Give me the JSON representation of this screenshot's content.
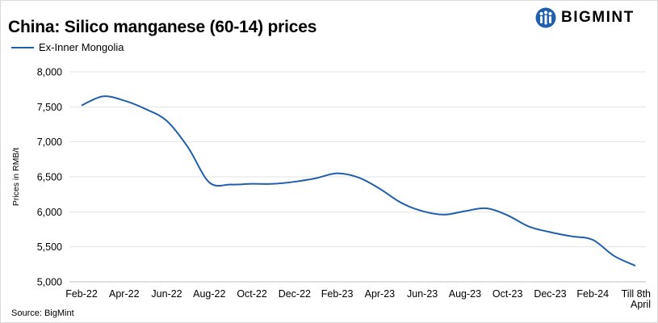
{
  "header": {
    "title": "China: Silico manganese (60-14) prices"
  },
  "brand": {
    "name": "BIGMINT",
    "icon": "bigmint-logo-icon",
    "color": "#1f5fae"
  },
  "footer": {
    "source": "Source: BigMint"
  },
  "chart_data": {
    "type": "line",
    "title": "China: Silico manganese (60-14) prices",
    "xlabel": "",
    "ylabel": "Prices in RMB/t",
    "ylim": [
      5000,
      8000
    ],
    "y_ticks": [
      "8,000",
      "7,500",
      "7,000",
      "6,500",
      "6,000",
      "5,500",
      "5,000"
    ],
    "y_tick_values": [
      8000,
      7500,
      7000,
      6500,
      6000,
      5500,
      5000
    ],
    "x_ticks": [
      "Feb-22",
      "Apr-22",
      "Jun-22",
      "Aug-22",
      "Oct-22",
      "Dec-22",
      "Feb-23",
      "Apr-23",
      "Jun-23",
      "Aug-23",
      "Oct-23",
      "Dec-23",
      "Feb-24",
      "Till 8th April"
    ],
    "grid": true,
    "legend": "top-left",
    "series": [
      {
        "name": "Ex-Inner Mongolia",
        "color": "#1f5fae",
        "x": [
          "Feb-22",
          "Mar-22",
          "Apr-22",
          "May-22",
          "Jun-22",
          "Jul-22",
          "Aug-22",
          "Sep-22",
          "Oct-22",
          "Nov-22",
          "Dec-22",
          "Jan-23",
          "Feb-23",
          "Mar-23",
          "Apr-23",
          "May-23",
          "Jun-23",
          "Jul-23",
          "Aug-23",
          "Sep-23",
          "Oct-23",
          "Nov-23",
          "Dec-23",
          "Jan-24",
          "Feb-24",
          "Mar-24",
          "Till 8th April"
        ],
        "values": [
          7520,
          7650,
          7590,
          7470,
          7300,
          6920,
          6420,
          6390,
          6400,
          6400,
          6430,
          6480,
          6550,
          6490,
          6330,
          6130,
          6010,
          5960,
          6010,
          6050,
          5950,
          5790,
          5710,
          5650,
          5600,
          5370,
          5230
        ]
      }
    ]
  }
}
